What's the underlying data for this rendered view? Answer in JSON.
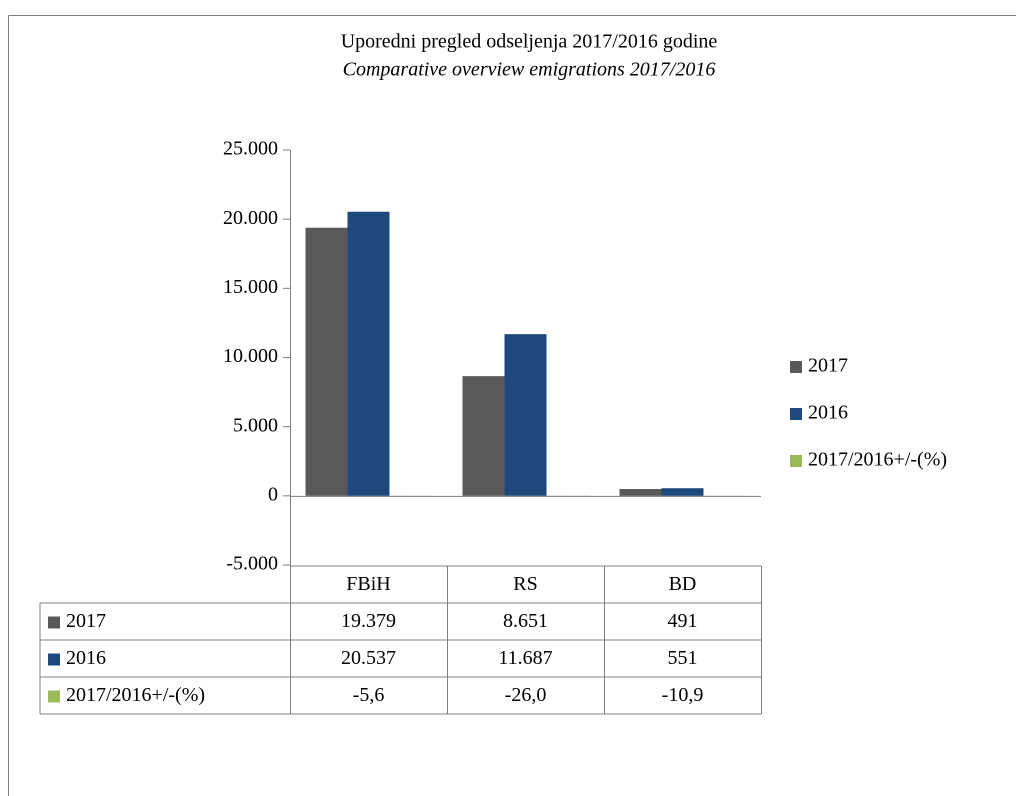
{
  "chart_data": {
    "type": "bar",
    "title": "Uporedni pregled odseljenja 2017/2016 godine",
    "subtitle": "Comparative overview emigrations 2017/2016",
    "categories": [
      "FBiH",
      "RS",
      "BD"
    ],
    "series": [
      {
        "name": "2017",
        "color": "#595959",
        "values": [
          19379,
          8651,
          491
        ],
        "value_labels": [
          "19.379",
          "8.651",
          "491"
        ]
      },
      {
        "name": "2016",
        "color": "#1f497d",
        "values": [
          20537,
          11687,
          551
        ],
        "value_labels": [
          "20.537",
          "11.687",
          "551"
        ]
      },
      {
        "name": "2017/2016+/-(%)",
        "color": "#9bbb59",
        "values": [
          -5.6,
          -26.0,
          -10.9
        ],
        "value_labels": [
          "-5,6",
          "-26,0",
          "-10,9"
        ]
      }
    ],
    "ylim": [
      -5000,
      25000
    ],
    "yticks": [
      {
        "value": -5000,
        "label": "-5.000"
      },
      0,
      {
        "value": 5000,
        "label": "5.000"
      },
      {
        "value": 10000,
        "label": "10.000"
      },
      {
        "value": 15000,
        "label": "15.000"
      },
      {
        "value": 20000,
        "label": "20.000"
      },
      {
        "value": 25000,
        "label": "25.000"
      }
    ],
    "legend": "right",
    "data_table": true
  }
}
